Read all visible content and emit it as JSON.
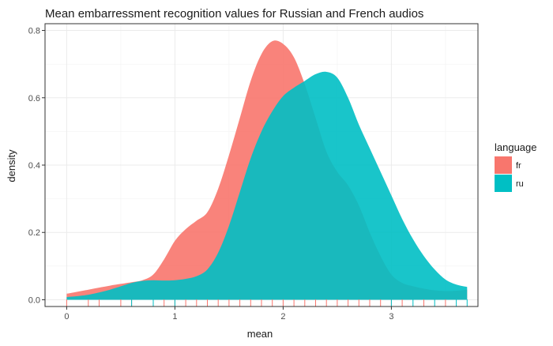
{
  "chart_data": {
    "type": "area",
    "title": "Mean embarressment recognition values for Russian and French audios",
    "xlabel": "mean",
    "ylabel": "density",
    "xlim": [
      -0.2,
      3.8
    ],
    "ylim": [
      -0.02,
      0.82
    ],
    "x_ticks": [
      "0",
      "1",
      "2",
      "3"
    ],
    "y_ticks": [
      "0.0",
      "0.2",
      "0.4",
      "0.6",
      "0.8"
    ],
    "grid": true,
    "legend": {
      "title": "language",
      "position": "right"
    },
    "series": [
      {
        "name": "fr",
        "color": "#F8766D",
        "points": [
          [
            0.0,
            0.018
          ],
          [
            0.2,
            0.03
          ],
          [
            0.4,
            0.042
          ],
          [
            0.6,
            0.052
          ],
          [
            0.7,
            0.058
          ],
          [
            0.8,
            0.075
          ],
          [
            0.9,
            0.12
          ],
          [
            1.0,
            0.175
          ],
          [
            1.1,
            0.21
          ],
          [
            1.2,
            0.235
          ],
          [
            1.3,
            0.26
          ],
          [
            1.4,
            0.33
          ],
          [
            1.5,
            0.43
          ],
          [
            1.6,
            0.54
          ],
          [
            1.7,
            0.65
          ],
          [
            1.8,
            0.73
          ],
          [
            1.9,
            0.768
          ],
          [
            2.0,
            0.76
          ],
          [
            2.1,
            0.72
          ],
          [
            2.2,
            0.64
          ],
          [
            2.3,
            0.54
          ],
          [
            2.4,
            0.44
          ],
          [
            2.5,
            0.38
          ],
          [
            2.6,
            0.34
          ],
          [
            2.7,
            0.28
          ],
          [
            2.8,
            0.2
          ],
          [
            2.9,
            0.13
          ],
          [
            3.0,
            0.075
          ],
          [
            3.1,
            0.05
          ],
          [
            3.2,
            0.04
          ],
          [
            3.3,
            0.033
          ],
          [
            3.4,
            0.028
          ],
          [
            3.5,
            0.026
          ],
          [
            3.6,
            0.027
          ],
          [
            3.7,
            0.03
          ]
        ],
        "rug": [
          0.0,
          0.2,
          0.3,
          0.5,
          0.6,
          0.8,
          0.9,
          1.0,
          1.1,
          1.2,
          1.3,
          1.4,
          1.5,
          1.6,
          1.7,
          1.8,
          1.9,
          2.0,
          2.1,
          2.2,
          2.3,
          2.4,
          2.5,
          2.6,
          2.7,
          2.8,
          2.9,
          3.0,
          3.1,
          3.3,
          3.5
        ]
      },
      {
        "name": "ru",
        "color": "#00BFC4",
        "points": [
          [
            0.0,
            0.008
          ],
          [
            0.2,
            0.015
          ],
          [
            0.4,
            0.03
          ],
          [
            0.6,
            0.05
          ],
          [
            0.7,
            0.056
          ],
          [
            0.8,
            0.058
          ],
          [
            0.9,
            0.057
          ],
          [
            1.0,
            0.058
          ],
          [
            1.1,
            0.062
          ],
          [
            1.2,
            0.07
          ],
          [
            1.3,
            0.09
          ],
          [
            1.4,
            0.14
          ],
          [
            1.5,
            0.22
          ],
          [
            1.6,
            0.32
          ],
          [
            1.7,
            0.42
          ],
          [
            1.8,
            0.5
          ],
          [
            1.9,
            0.56
          ],
          [
            2.0,
            0.605
          ],
          [
            2.1,
            0.63
          ],
          [
            2.2,
            0.65
          ],
          [
            2.3,
            0.67
          ],
          [
            2.4,
            0.677
          ],
          [
            2.5,
            0.66
          ],
          [
            2.6,
            0.6
          ],
          [
            2.7,
            0.52
          ],
          [
            2.8,
            0.45
          ],
          [
            2.9,
            0.38
          ],
          [
            3.0,
            0.31
          ],
          [
            3.1,
            0.24
          ],
          [
            3.2,
            0.18
          ],
          [
            3.3,
            0.13
          ],
          [
            3.4,
            0.09
          ],
          [
            3.5,
            0.06
          ],
          [
            3.6,
            0.045
          ],
          [
            3.7,
            0.038
          ]
        ],
        "rug": [
          0.6,
          0.8,
          1.0,
          3.0,
          3.2,
          3.4,
          3.6,
          3.7
        ]
      }
    ]
  }
}
